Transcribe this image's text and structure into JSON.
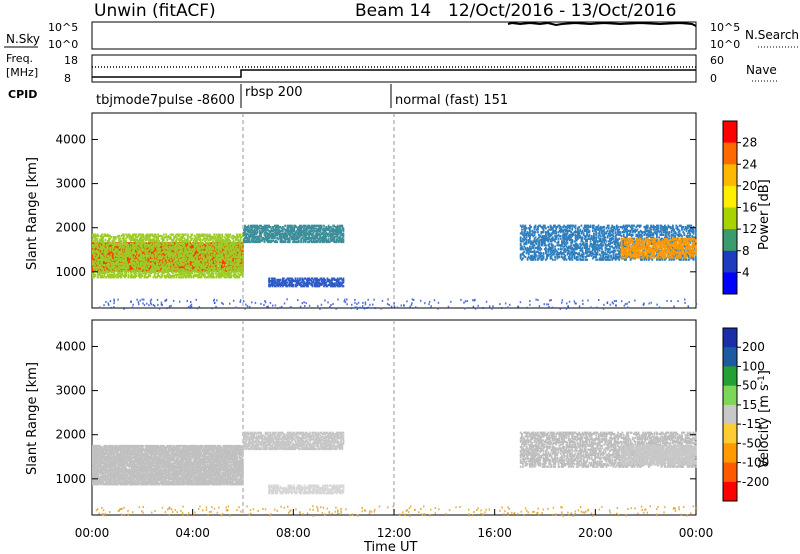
{
  "header": {
    "title": "Unwin (fitACF)",
    "beam": "Beam 14",
    "date_range": "12/Oct/2016 - 13/Oct/2016"
  },
  "nsky_panel": {
    "left_label": "N.Sky",
    "right_label": "N.Search",
    "left_ticks": [
      "10^5",
      "10^0"
    ],
    "right_ticks": [
      "10^5",
      "10^0"
    ]
  },
  "freq_panel": {
    "left_label_line1": "Freq.",
    "left_label_line2": "[MHz]",
    "right_label": "Nave",
    "left_ticks": [
      "18",
      "8"
    ],
    "right_ticks": [
      "60",
      "0"
    ]
  },
  "cpid": {
    "label": "CPID",
    "modes": [
      {
        "name": "tbjmode7pulse -8600",
        "start_hour": 0
      },
      {
        "name": "rbsp 200",
        "start_hour": 6
      },
      {
        "name": "normal (fast) 151",
        "start_hour": 12
      }
    ]
  },
  "chart_data": {
    "type": "heatmap",
    "x_axis": {
      "label": "Time UT",
      "ticks": [
        "00:00",
        "04:00",
        "08:00",
        "12:00",
        "16:00",
        "20:00",
        "00:00"
      ],
      "range_hours": [
        0,
        24
      ]
    },
    "y_axis": {
      "label": "Slant Range [km]",
      "ticks": [
        1000,
        2000,
        3000,
        4000
      ],
      "range_km": [
        180,
        4600
      ]
    },
    "panels": [
      {
        "name": "power",
        "colorbar_label": "Power [dB]",
        "colorbar_ticks": [
          "28",
          "24",
          "20",
          "16",
          "12",
          "8",
          "4"
        ],
        "colorbar_colors": [
          "#ff0000",
          "#ff6a00",
          "#ffb800",
          "#ffee00",
          "#a8d200",
          "#3a9b6e",
          "#1e3cbe",
          "#0000ff"
        ],
        "scatter_bands": [
          {
            "t0": 0,
            "t1": 6,
            "r0": 1050,
            "r1": 1700,
            "color": "#ff3a00",
            "density": 0.9
          },
          {
            "t0": 0,
            "t1": 6,
            "r0": 900,
            "r1": 1900,
            "color": "#9ccc28",
            "density": 0.5
          },
          {
            "t0": 6,
            "t1": 10,
            "r0": 1700,
            "r1": 2100,
            "color": "#3d8f9a",
            "density": 0.7
          },
          {
            "t0": 7,
            "t1": 10,
            "r0": 700,
            "r1": 900,
            "color": "#2d5bc8",
            "density": 0.6
          },
          {
            "t0": 17,
            "t1": 24,
            "r0": 1300,
            "r1": 2100,
            "color": "#2f7fbe",
            "density": 0.45
          },
          {
            "t0": 21,
            "t1": 24,
            "r0": 1350,
            "r1": 1800,
            "color": "#ff9a00",
            "density": 0.55
          }
        ]
      },
      {
        "name": "velocity",
        "colorbar_label": "Velocity [m s^-1]",
        "colorbar_ticks": [
          "200",
          "100",
          "50",
          "15",
          "-15",
          "-50",
          "-100",
          "-200"
        ],
        "colorbar_colors": [
          "#1a2ea8",
          "#1e5aa0",
          "#23a033",
          "#7ed657",
          "#c8c8c8",
          "#ffcc33",
          "#ff9a00",
          "#ff5a00",
          "#ff0000"
        ],
        "scatter_bands": [
          {
            "t0": 0,
            "t1": 6,
            "r0": 900,
            "r1": 1800,
            "color": "#c0c0c0",
            "density": 0.85
          },
          {
            "t0": 6,
            "t1": 10,
            "r0": 1700,
            "r1": 2100,
            "color": "#c6c6c6",
            "density": 0.7
          },
          {
            "t0": 7,
            "t1": 10,
            "r0": 700,
            "r1": 900,
            "color": "#d6d6d6",
            "density": 0.6
          },
          {
            "t0": 17,
            "t1": 24,
            "r0": 1300,
            "r1": 2100,
            "color": "#bdbdbd",
            "density": 0.5
          },
          {
            "t0": 21,
            "t1": 24,
            "r0": 1350,
            "r1": 1800,
            "color": "#c8c8c8",
            "density": 0.65
          }
        ]
      }
    ],
    "grid": false
  }
}
